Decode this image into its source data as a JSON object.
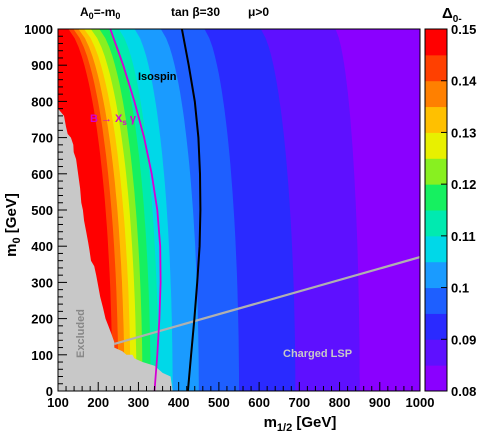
{
  "chart_data": {
    "type": "heatmap",
    "header": {
      "a0_label": "A",
      "a0_sub": "0",
      "a0_eq": "=-m",
      "a0_sub2": "0",
      "tanb_label": "tan β=30",
      "mu_label": "μ>0"
    },
    "xlabel_main": "m",
    "xlabel_sub": "1/2",
    "xlabel_unit": " [GeV]",
    "ylabel_main": "m",
    "ylabel_sub": "0",
    "ylabel_unit": " [GeV]",
    "zlabel_main": "Δ",
    "zlabel_sub": "0-",
    "x_ticks": [
      "100",
      "200",
      "300",
      "400",
      "500",
      "600",
      "700",
      "800",
      "900",
      "1000"
    ],
    "y_ticks": [
      "0",
      "100",
      "200",
      "300",
      "400",
      "500",
      "600",
      "700",
      "800",
      "900",
      "1000"
    ],
    "z_ticks": [
      "0.08",
      "0.09",
      "0.1",
      "0.11",
      "0.12",
      "0.13",
      "0.14",
      "0.15"
    ],
    "xlim": [
      100,
      1000
    ],
    "ylim": [
      0,
      1000
    ],
    "zlim": [
      0.08,
      0.15
    ],
    "color_levels": [
      {
        "from": 0.08,
        "to": 0.085,
        "color": "#8a00ff"
      },
      {
        "from": 0.085,
        "to": 0.09,
        "color": "#5e10ff"
      },
      {
        "from": 0.09,
        "to": 0.095,
        "color": "#2a2aff"
      },
      {
        "from": 0.095,
        "to": 0.1,
        "color": "#1e5fff"
      },
      {
        "from": 0.1,
        "to": 0.105,
        "color": "#1a9bff"
      },
      {
        "from": 0.105,
        "to": 0.11,
        "color": "#00d8e8"
      },
      {
        "from": 0.11,
        "to": 0.115,
        "color": "#00eab0"
      },
      {
        "from": 0.115,
        "to": 0.12,
        "color": "#16f060"
      },
      {
        "from": 0.12,
        "to": 0.125,
        "color": "#88f020"
      },
      {
        "from": 0.125,
        "to": 0.13,
        "color": "#e8f000"
      },
      {
        "from": 0.13,
        "to": 0.135,
        "color": "#ffc000"
      },
      {
        "from": 0.135,
        "to": 0.14,
        "color": "#ff8000"
      },
      {
        "from": 0.14,
        "to": 0.145,
        "color": "#ff4000"
      },
      {
        "from": 0.145,
        "to": 0.15,
        "color": "#ff0000"
      }
    ],
    "level_boundaries": [
      {
        "value": 0.145,
        "m12_at_m0_0": 235,
        "m12_at_m0_1000": 108
      },
      {
        "value": 0.14,
        "m12_at_m0_0": 250,
        "m12_at_m0_1000": 120
      },
      {
        "value": 0.135,
        "m12_at_m0_0": 265,
        "m12_at_m0_1000": 132
      },
      {
        "value": 0.13,
        "m12_at_m0_0": 280,
        "m12_at_m0_1000": 146
      },
      {
        "value": 0.125,
        "m12_at_m0_0": 295,
        "m12_at_m0_1000": 163
      },
      {
        "value": 0.12,
        "m12_at_m0_0": 310,
        "m12_at_m0_1000": 185
      },
      {
        "value": 0.115,
        "m12_at_m0_0": 330,
        "m12_at_m0_1000": 208
      },
      {
        "value": 0.11,
        "m12_at_m0_0": 350,
        "m12_at_m0_1000": 235
      },
      {
        "value": 0.105,
        "m12_at_m0_0": 385,
        "m12_at_m0_1000": 275
      },
      {
        "value": 0.1,
        "m12_at_m0_0": 450,
        "m12_at_m0_1000": 340
      },
      {
        "value": 0.095,
        "m12_at_m0_0": 550,
        "m12_at_m0_1000": 450
      },
      {
        "value": 0.09,
        "m12_at_m0_0": 690,
        "m12_at_m0_1000": 590
      },
      {
        "value": 0.085,
        "m12_at_m0_0": 850,
        "m12_at_m0_1000": 780
      }
    ],
    "curves": [
      {
        "label": "Isospin",
        "color": "#000000",
        "points": [
          [
            423,
            0
          ],
          [
            431,
            100
          ],
          [
            439,
            200
          ],
          [
            446,
            300
          ],
          [
            452,
            400
          ],
          [
            454,
            500
          ],
          [
            453,
            600
          ],
          [
            449,
            700
          ],
          [
            440,
            800
          ],
          [
            425,
            900
          ],
          [
            408,
            1000
          ]
        ]
      },
      {
        "label_main": "B → X",
        "label_sub": "s",
        "label_tail": " γ",
        "color": "#d400d4",
        "points": [
          [
            340,
            0
          ],
          [
            347,
            100
          ],
          [
            352,
            200
          ],
          [
            355,
            300
          ],
          [
            354,
            400
          ],
          [
            347,
            500
          ],
          [
            333,
            600
          ],
          [
            314,
            700
          ],
          [
            290,
            800
          ],
          [
            262,
            900
          ],
          [
            230,
            1000
          ]
        ]
      }
    ],
    "charged_lsp_line": {
      "color": "#b0b0b0",
      "points": [
        [
          240,
          130
        ],
        [
          1000,
          370
        ]
      ]
    },
    "excluded_region": {
      "color": "#c8c8c8",
      "boundary": [
        [
          100,
          0
        ],
        [
          100,
          780
        ],
        [
          115,
          760
        ],
        [
          120,
          730
        ],
        [
          124,
          710
        ],
        [
          132,
          700
        ],
        [
          138,
          680
        ],
        [
          139,
          660
        ],
        [
          145,
          640
        ],
        [
          150,
          600
        ],
        [
          155,
          560
        ],
        [
          158,
          520
        ],
        [
          162,
          500
        ],
        [
          165,
          470
        ],
        [
          170,
          440
        ],
        [
          175,
          410
        ],
        [
          178,
          390
        ],
        [
          182,
          360
        ],
        [
          190,
          345
        ],
        [
          195,
          320
        ],
        [
          200,
          290
        ],
        [
          205,
          260
        ],
        [
          212,
          230
        ],
        [
          218,
          200
        ],
        [
          225,
          180
        ],
        [
          232,
          160
        ],
        [
          240,
          135
        ],
        [
          240,
          120
        ],
        [
          260,
          110
        ],
        [
          270,
          100
        ],
        [
          285,
          100
        ],
        [
          290,
          90
        ],
        [
          310,
          80
        ],
        [
          340,
          70
        ],
        [
          360,
          50
        ],
        [
          380,
          40
        ],
        [
          385,
          0
        ]
      ]
    },
    "annotations": {
      "isospin": "Isospin",
      "excluded": "Excluded",
      "charged_lsp": "Charged LSP"
    }
  }
}
